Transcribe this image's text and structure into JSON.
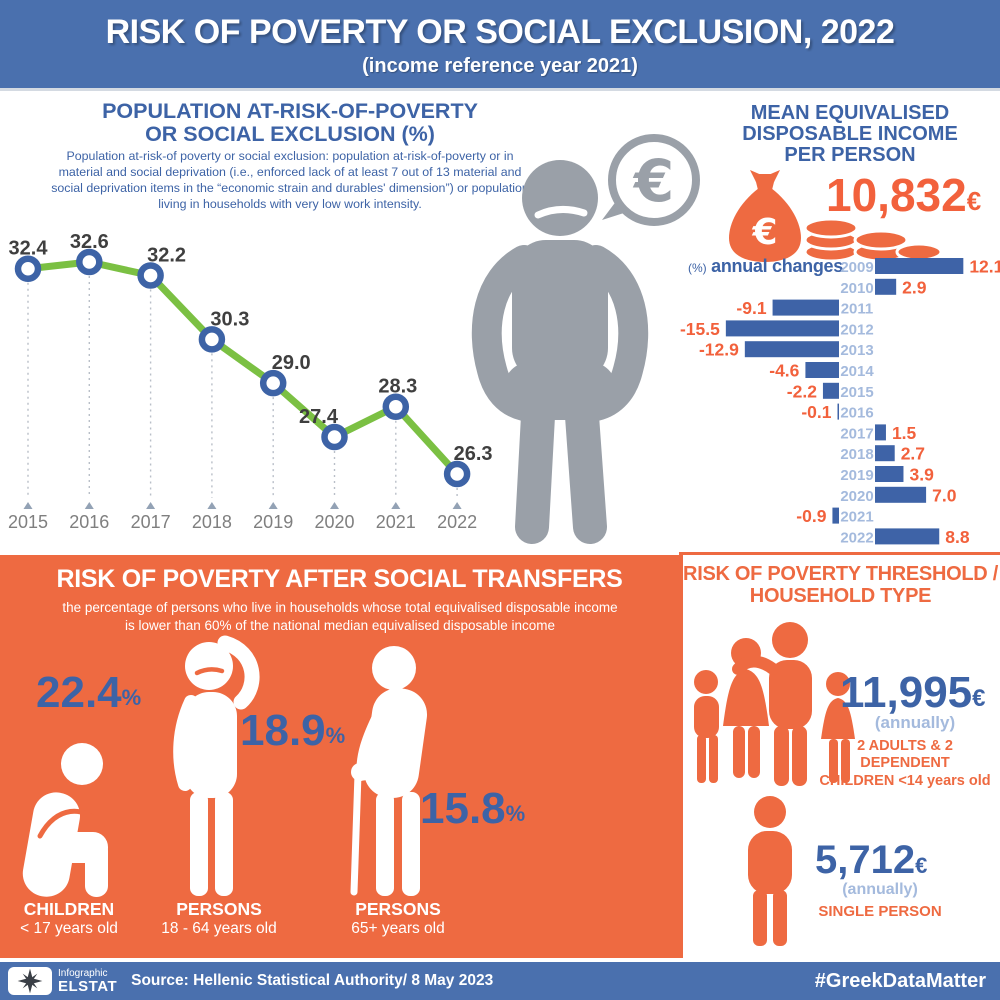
{
  "colors": {
    "header_blue": "#4a70ae",
    "accent_blue": "#3d63a6",
    "light_blue": "#a4badd",
    "orange": "#ee6a41",
    "value_orange": "#f2613c",
    "line_green": "#7bc043",
    "figure_gray": "#9aa0a8",
    "label_gray": "#3f3f3f",
    "year_gray": "#7f7f7f"
  },
  "header": {
    "title": "RISK OF POVERTY OR SOCIAL EXCLUSION, 2022",
    "subtitle": "(income reference year 2021)"
  },
  "population_section": {
    "title_line1": "POPULATION AT-RISK-OF-POVERTY",
    "title_line2": "OR SOCIAL EXCLUSION (%)",
    "description": "Population at-risk-of poverty or social exclusion: population at-risk-of-poverty or in material and social deprivation (i.e., enforced lack of at least 7 out of 13 material and social deprivation items in the “economic strain and durables' dimension”) or population living in households with very low work intensity."
  },
  "income_section": {
    "title": "MEAN EQUIVALISED DISPOSABLE INCOME PER PERSON",
    "amount": "10,832",
    "currency": "€",
    "changes_prefix": "(%)",
    "changes_label": "annual changes"
  },
  "chart_data": [
    {
      "type": "line",
      "title": "POPULATION AT-RISK-OF-POVERTY OR SOCIAL EXCLUSION (%)",
      "categories": [
        "2015",
        "2016",
        "2017",
        "2018",
        "2019",
        "2020",
        "2021",
        "2022"
      ],
      "values": [
        32.4,
        32.6,
        32.2,
        30.3,
        29.0,
        27.4,
        28.3,
        26.3
      ],
      "ylim": [
        26.3,
        32.6
      ],
      "grid": false,
      "legend": "none",
      "line_color": "#7bc043",
      "marker_color": "#3d63a6",
      "value_labels": true
    },
    {
      "type": "bar",
      "orientation": "horizontal",
      "title": "(%) annual changes",
      "categories": [
        "2009",
        "2010",
        "2011",
        "2012",
        "2013",
        "2014",
        "2015",
        "2016",
        "2017",
        "2018",
        "2019",
        "2020",
        "2021",
        "2022"
      ],
      "values": [
        12.1,
        2.9,
        -9.1,
        -15.5,
        -12.9,
        -4.6,
        -2.2,
        -0.1,
        1.5,
        2.7,
        3.9,
        7.0,
        -0.9,
        8.8
      ],
      "bar_color": "#3e63a7",
      "value_color": "#f2613c",
      "year_color": "#a4badd",
      "value_labels": true
    }
  ],
  "transfers_section": {
    "title": "RISK OF POVERTY  AFTER SOCIAL TRANSFERS",
    "description": "the percentage of persons who live in households whose total equivalised disposable income is lower than 60% of the national median equivalised disposable income",
    "groups": [
      {
        "value": "22.4",
        "unit": "%",
        "label": "CHILDREN",
        "sublabel": "< 17 years old",
        "icon": "child-sitting-icon"
      },
      {
        "value": "18.9",
        "unit": "%",
        "label": "PERSONS",
        "sublabel": "18 - 64 years old",
        "icon": "adult-person-icon"
      },
      {
        "value": "15.8",
        "unit": "%",
        "label": "PERSONS",
        "sublabel": "65+ years old",
        "icon": "elderly-person-icon"
      }
    ]
  },
  "threshold_section": {
    "title_line1": "RISK OF POVERTY THRESHOLD /",
    "title_line2": "HOUSEHOLD TYPE",
    "items": [
      {
        "amount": "11,995",
        "currency": "€",
        "note": "(annually)",
        "label_line1": "2 ADULTS & 2 DEPENDENT",
        "label_line2": "CHILDREN <14 years old",
        "icon": "family-icon"
      },
      {
        "amount": "5,712",
        "currency": "€",
        "note": "(annually)",
        "label_line1": "SINGLE PERSON",
        "label_line2": "",
        "icon": "single-person-icon"
      }
    ]
  },
  "footer": {
    "logo_top": "Infographic",
    "logo_bottom": "ELSTAT",
    "source": "Source: Hellenic Statistical Authority/ 8 May 2023",
    "hashtag": "#GreekDataMatter"
  }
}
